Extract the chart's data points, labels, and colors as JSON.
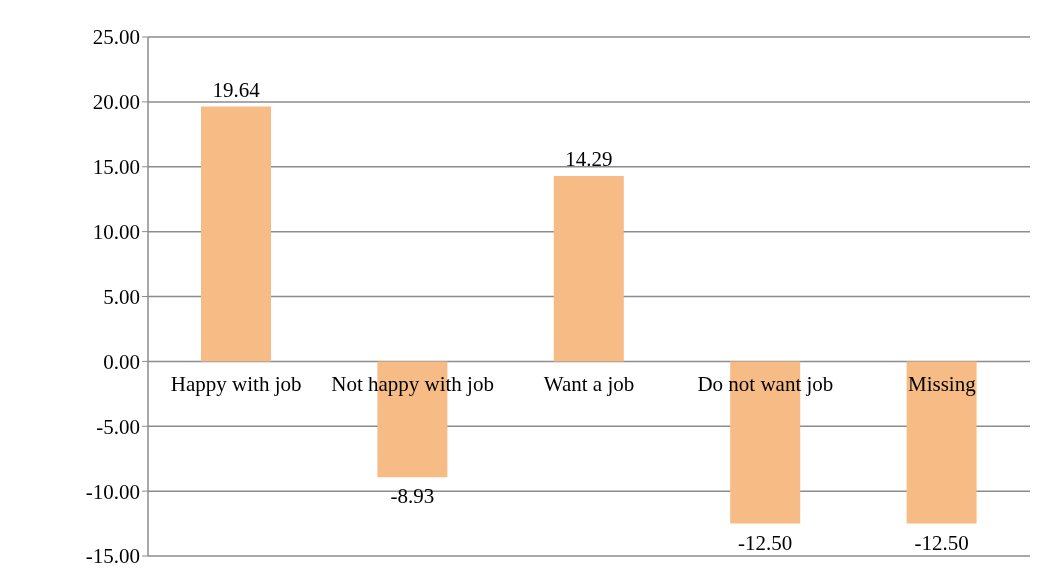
{
  "chart_data": {
    "type": "bar",
    "categories": [
      "Happy with job",
      "Not happy with job",
      "Want a job",
      "Do not want job",
      "Missing"
    ],
    "values": [
      19.64,
      -8.93,
      14.29,
      -12.5,
      -12.5
    ],
    "value_labels": [
      "19.64",
      "-8.93",
      "14.29",
      "-12.50",
      "-12.50"
    ],
    "color": "#f7bc86",
    "ylim": [
      -15,
      25
    ],
    "yticks": [
      {
        "value": -15,
        "label": "-15.00"
      },
      {
        "value": -10,
        "label": "-10.00"
      },
      {
        "value": -5,
        "label": "-5.00"
      },
      {
        "value": 0,
        "label": "0.00"
      },
      {
        "value": 5,
        "label": "5.00"
      },
      {
        "value": 10,
        "label": "10.00"
      },
      {
        "value": 15,
        "label": "15.00"
      },
      {
        "value": 20,
        "label": "20.00"
      },
      {
        "value": 25,
        "label": "25.00"
      }
    ],
    "grid": "y",
    "legend": false
  }
}
